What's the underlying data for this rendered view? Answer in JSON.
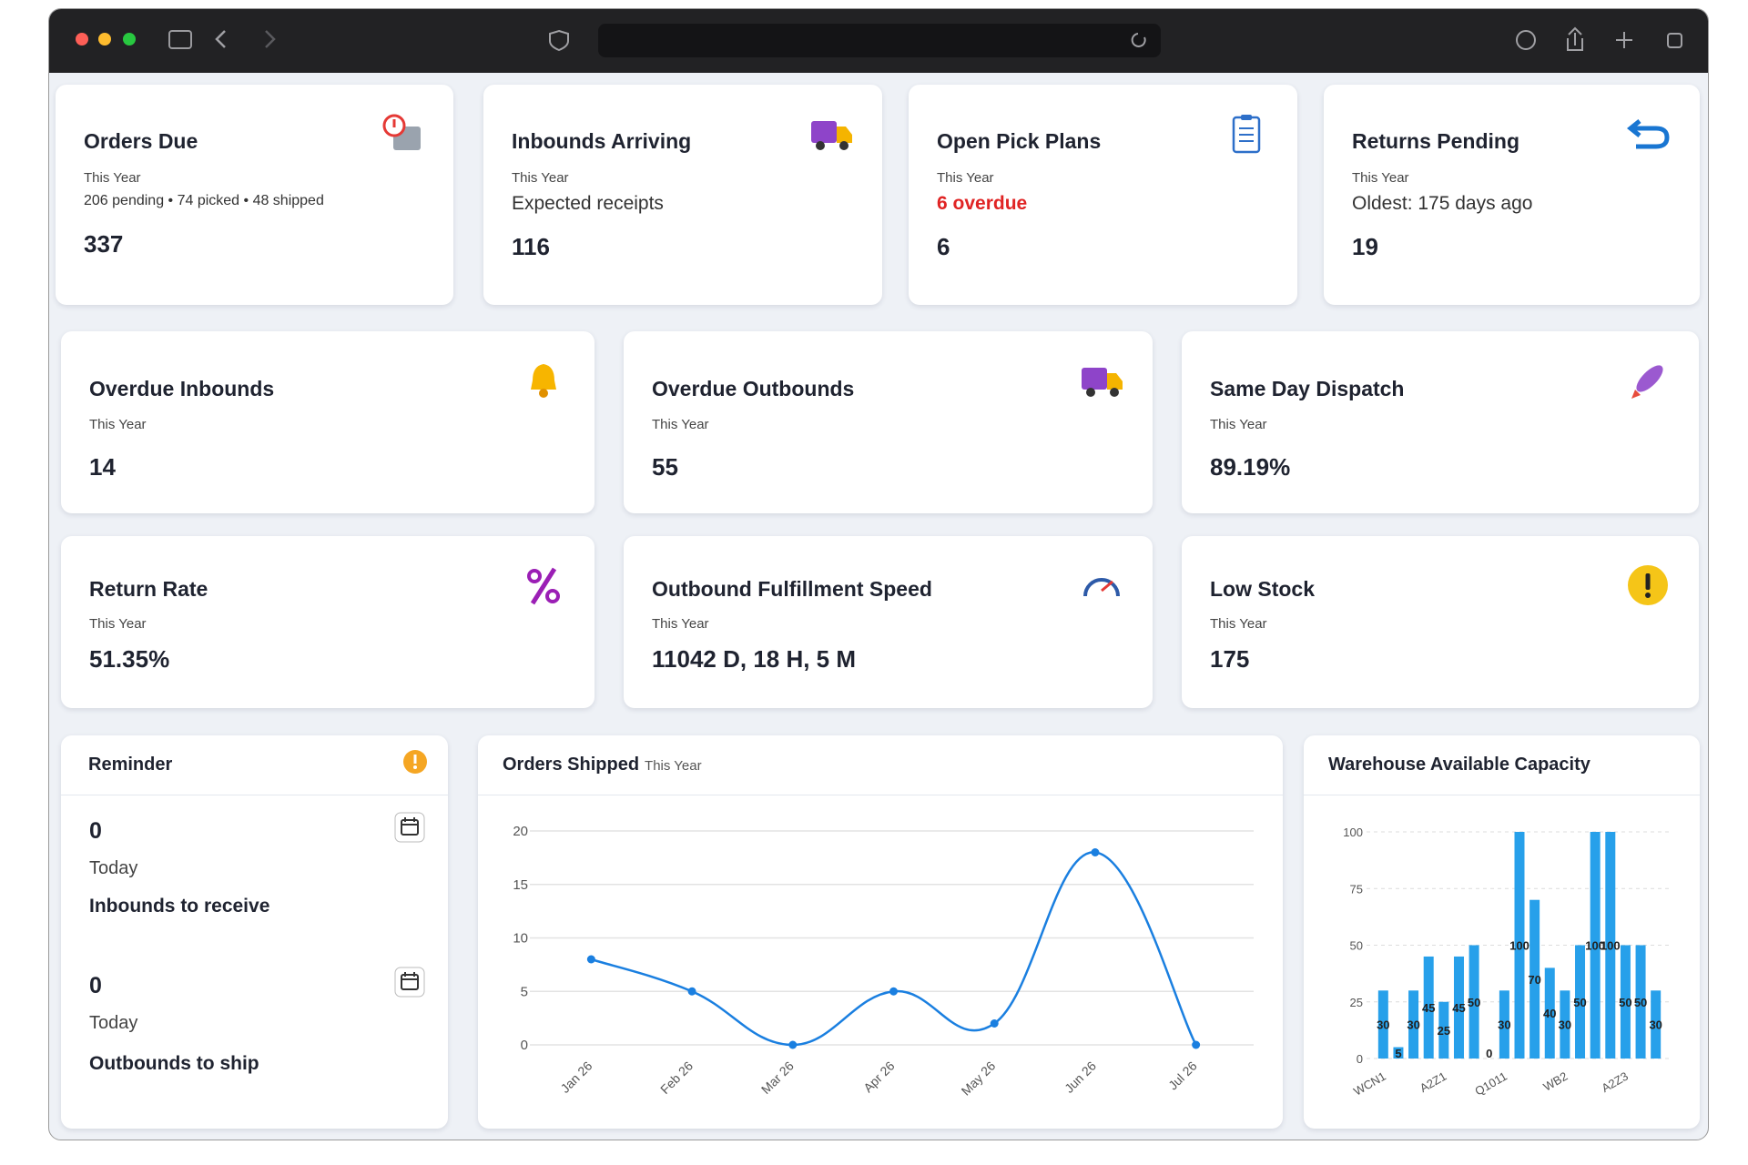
{
  "cards": [
    {
      "title": "Orders Due",
      "subtitle": "This Year",
      "detail": "206 pending • 74 picked • 48 shipped",
      "value": 337
    },
    {
      "title": "Inbounds Arriving",
      "subtitle": "This Year",
      "detail": "Expected receipts",
      "value": 116
    },
    {
      "title": "Open Pick Plans",
      "subtitle": "This Year",
      "detail": "6 overdue",
      "value": 6
    },
    {
      "title": "Returns Pending",
      "subtitle": "This Year",
      "detail": "Oldest: 175 days ago",
      "value": 19
    },
    {
      "title": "Overdue Inbounds",
      "subtitle": "This Year",
      "value": 14
    },
    {
      "title": "Overdue Outbounds",
      "subtitle": "This Year",
      "value": 55
    },
    {
      "title": "Same Day Dispatch",
      "subtitle": "This Year",
      "value": "89.19%"
    },
    {
      "title": "Return Rate",
      "subtitle": "This Year",
      "value": "51.35%"
    },
    {
      "title": "Outbound Fulfillment Speed",
      "subtitle": "This Year",
      "value": "11042 D, 18 H, 5 M"
    },
    {
      "title": "Low Stock",
      "subtitle": "This Year",
      "value": 175
    }
  ],
  "reminder": {
    "title": "Reminder",
    "items": [
      {
        "value": 0,
        "when": "Today",
        "label": "Inbounds to receive"
      },
      {
        "value": 0,
        "when": "Today",
        "label": "Outbounds to ship"
      }
    ]
  },
  "chart_data": [
    {
      "type": "line",
      "title": "Orders Shipped",
      "subtitle": "This Year",
      "categories": [
        "Jan 26",
        "Feb 26",
        "Mar 26",
        "Apr 26",
        "May 26",
        "Jun 26",
        "Jul 26"
      ],
      "values": [
        8,
        5,
        0,
        5,
        2,
        18,
        0
      ],
      "color": "#1a7fe0",
      "ylim": [
        0,
        20
      ],
      "yticks": [
        0,
        5,
        10,
        15,
        20
      ],
      "grid": true
    },
    {
      "type": "bar",
      "title": "Warehouse Available Capacity",
      "categories": [
        "WCN1",
        null,
        null,
        null,
        "A2Z1",
        null,
        null,
        null,
        "Q1011",
        null,
        null,
        null,
        "WB2",
        null,
        null,
        null,
        "A2Z3",
        null,
        null
      ],
      "values": [
        30,
        5,
        30,
        45,
        25,
        45,
        50,
        0,
        30,
        100,
        70,
        40,
        30,
        50,
        100,
        100,
        50,
        50,
        30
      ],
      "color": "#27a0ea",
      "ylim": [
        0,
        100
      ],
      "yticks": [
        0,
        25,
        50,
        75,
        100
      ],
      "grid": true
    }
  ]
}
